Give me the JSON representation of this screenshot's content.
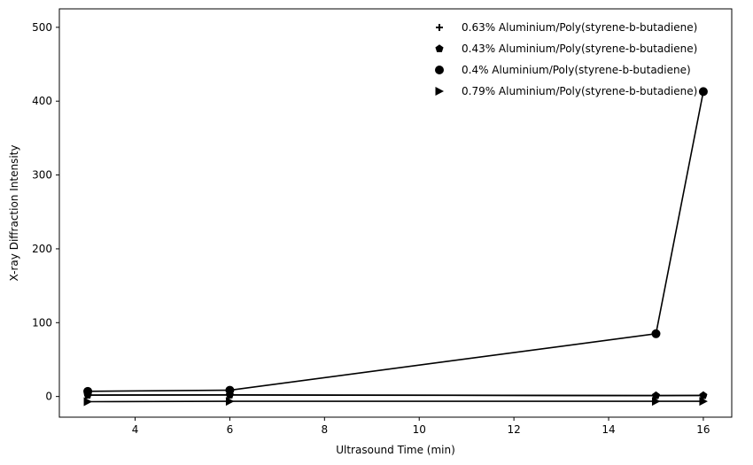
{
  "chart_data": {
    "type": "line",
    "title": "",
    "xlabel": "Ultrasound Time (min)",
    "ylabel": "X-ray Diffraction Intensity",
    "xlim": [
      2.4,
      16.6
    ],
    "ylim": [
      -28,
      525
    ],
    "xticks": [
      4,
      6,
      8,
      10,
      12,
      14,
      16
    ],
    "yticks": [
      0,
      100,
      200,
      300,
      400,
      500
    ],
    "grid": false,
    "legend_position": "top-right",
    "line_color": "#000000",
    "series": [
      {
        "name": "0.63% Aluminium/Poly(styrene-b-butadiene)",
        "marker": "plus",
        "x": [
          3,
          6,
          15,
          16
        ],
        "y": [
          2.0,
          2.2,
          1.3,
          1.5
        ]
      },
      {
        "name": "0.43% Aluminium/Poly(styrene-b-butadiene)",
        "marker": "pentagon",
        "x": [
          3,
          6,
          15,
          16
        ],
        "y": [
          1.8,
          2.0,
          1.2,
          1.4
        ]
      },
      {
        "name": "0.4% Aluminium/Poly(styrene-b-butadiene)",
        "marker": "circle",
        "x": [
          3,
          6,
          15,
          16
        ],
        "y": [
          7,
          8.5,
          85,
          413
        ]
      },
      {
        "name": "0.79% Aluminium/Poly(styrene-b-butadiene)",
        "marker": "triangle-right",
        "x": [
          3,
          6,
          15,
          16
        ],
        "y": [
          -7,
          -6.5,
          -6.5,
          -6.5
        ]
      }
    ]
  }
}
